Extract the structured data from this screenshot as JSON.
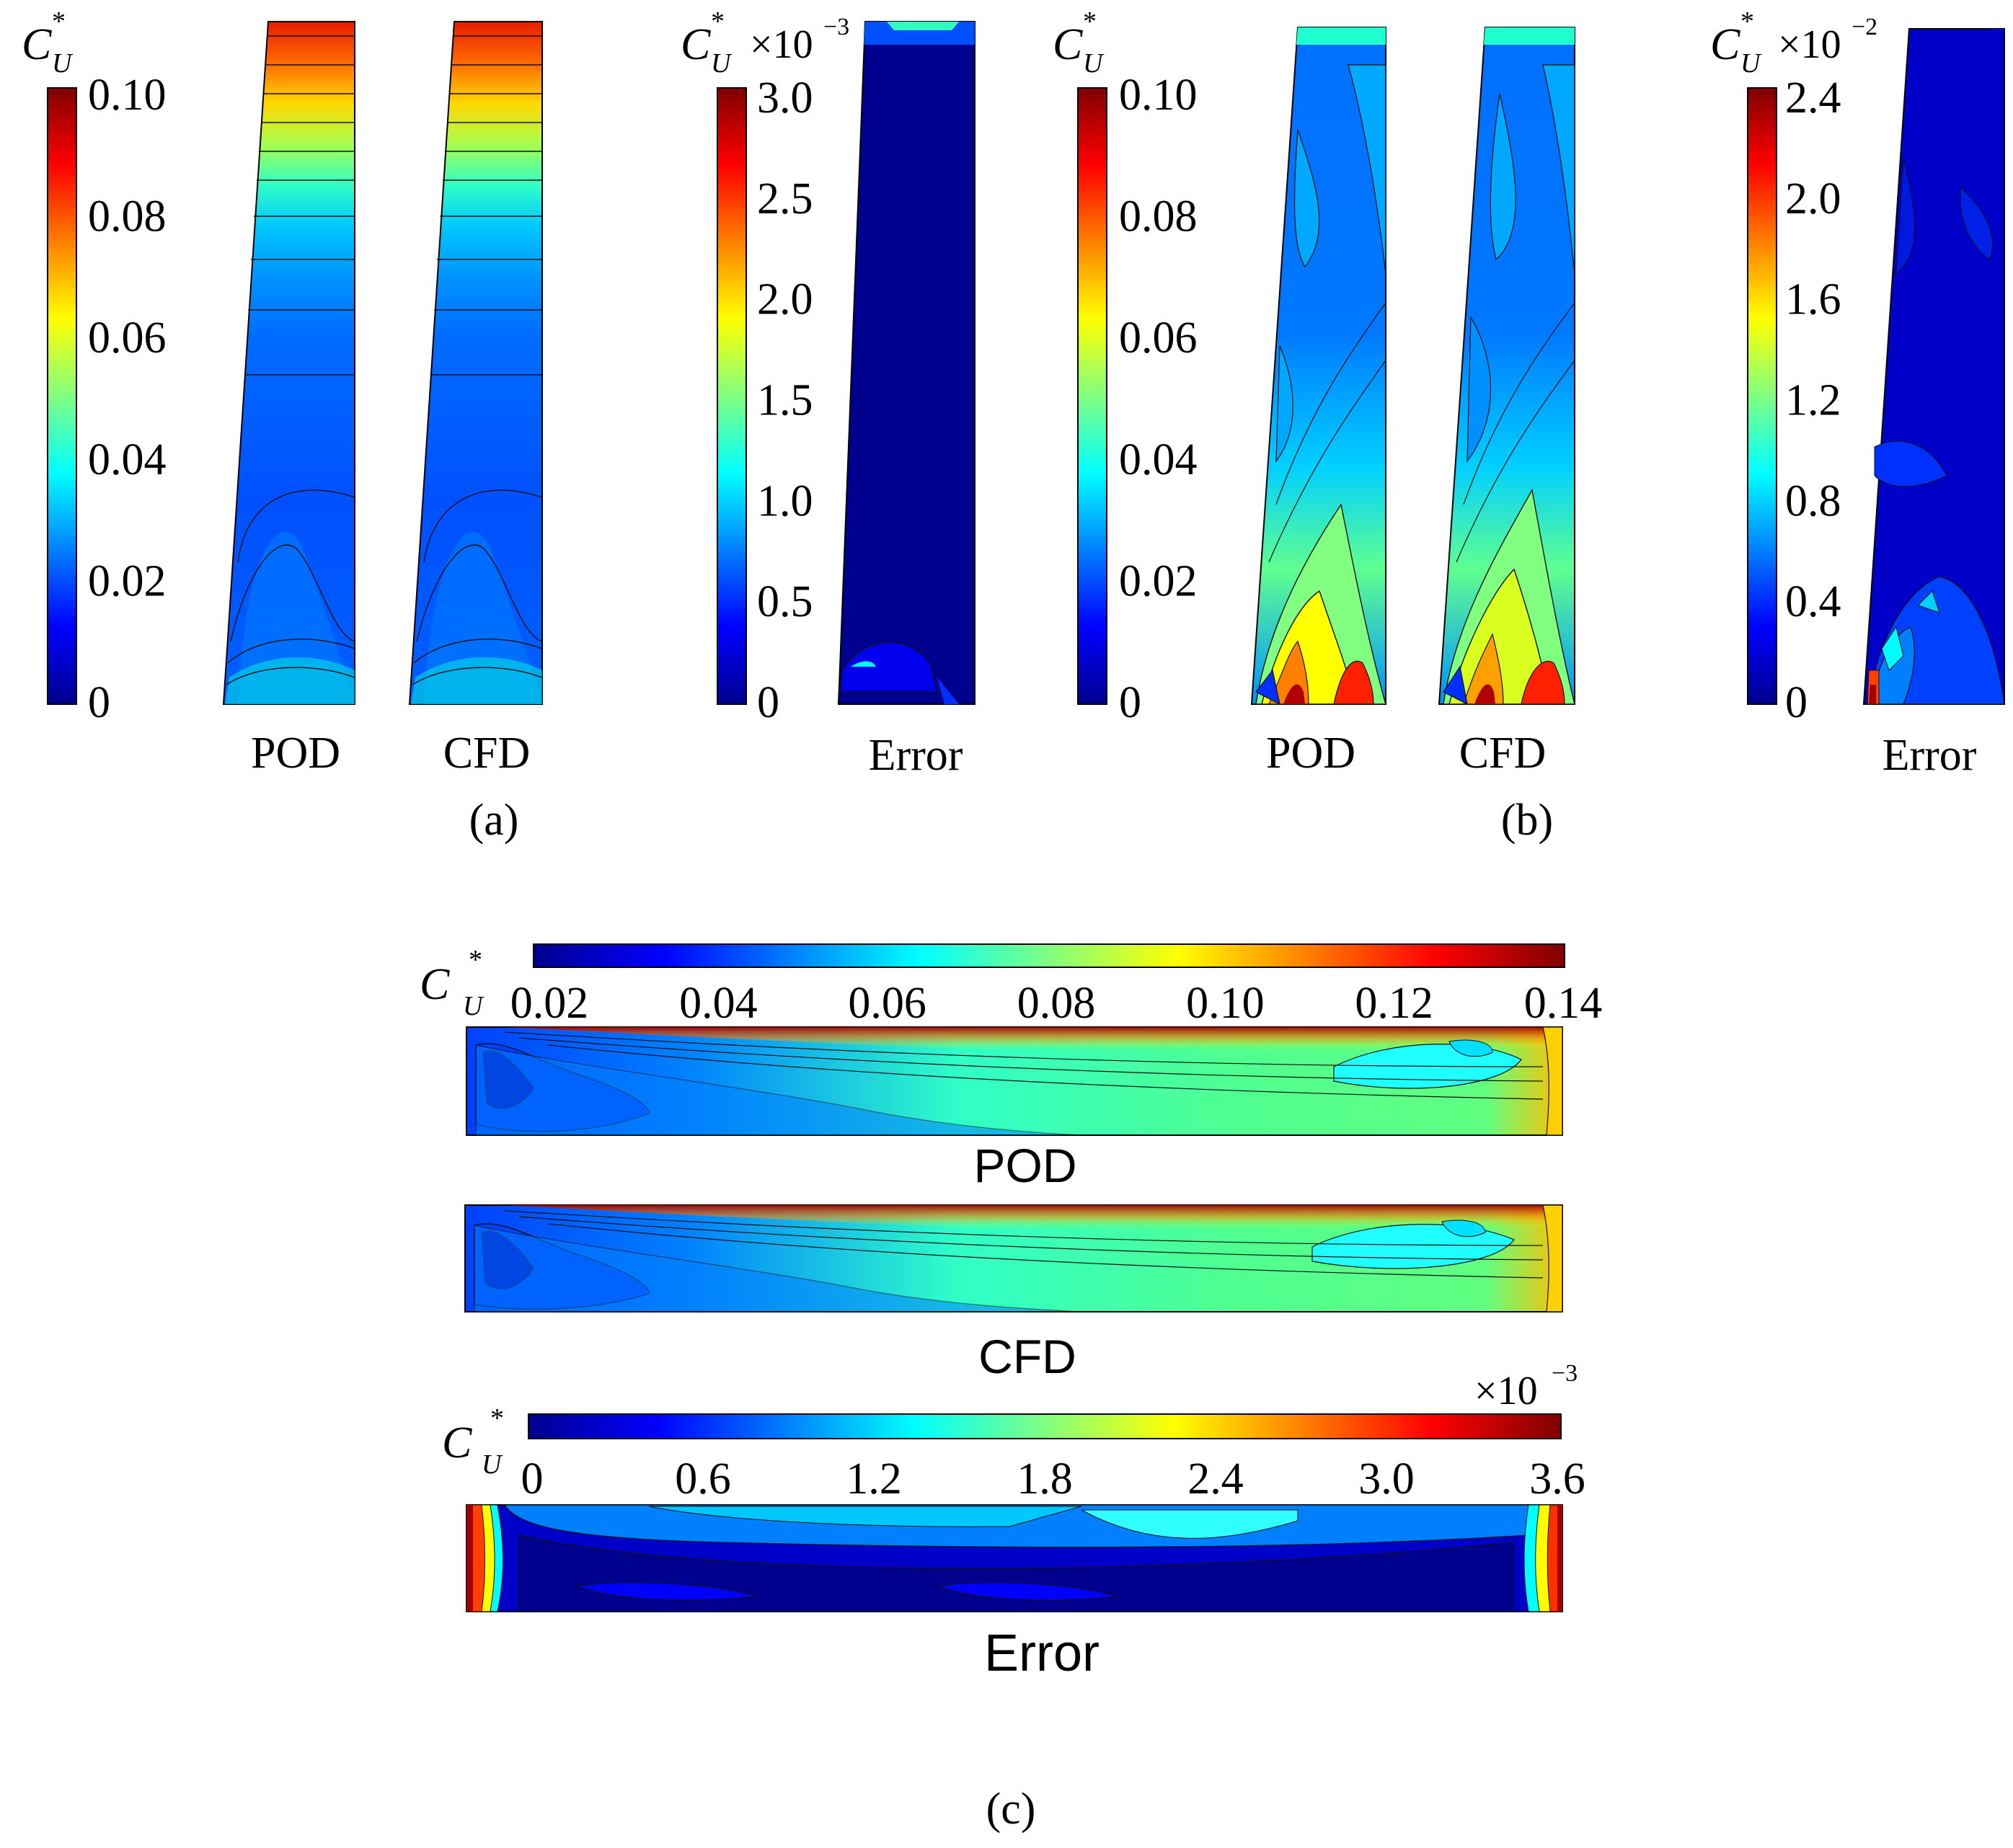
{
  "symbol": {
    "base": "C",
    "sub": "U",
    "sup": "*"
  },
  "colors": {
    "jet": [
      "#00008f",
      "#0000ff",
      "#0080ff",
      "#00ffff",
      "#80ff80",
      "#ffff00",
      "#ff8000",
      "#ff0000",
      "#800000"
    ],
    "contour_line": "#111111",
    "outline": "#000000"
  },
  "panels": {
    "a": {
      "label_text": "(a)",
      "label_letter": "a",
      "colorbar1": {
        "ticks": [
          "0.10",
          "0.08",
          "0.06",
          "0.04",
          "0.02",
          "0"
        ],
        "min": 0,
        "max": 0.1
      },
      "colorbar2": {
        "multiplier": "×10",
        "exponent": "−3",
        "ticks": [
          "3.0",
          "2.5",
          "2.0",
          "1.5",
          "1.0",
          "0.5",
          "0"
        ],
        "min": 0,
        "max": 3.0
      },
      "plot_labels": [
        "POD",
        "CFD",
        "Error"
      ]
    },
    "b": {
      "label_text": "(b)",
      "label_letter": "b",
      "colorbar1": {
        "ticks": [
          "0.10",
          "0.08",
          "0.06",
          "0.04",
          "0.02",
          "0"
        ],
        "min": 0,
        "max": 0.1
      },
      "colorbar2": {
        "multiplier": "×10",
        "exponent": "−2",
        "ticks": [
          "2.4",
          "2.0",
          "1.6",
          "1.2",
          "0.8",
          "0.4",
          "0"
        ],
        "min": 0,
        "max": 2.4
      },
      "plot_labels": [
        "POD",
        "CFD",
        "Error"
      ]
    },
    "c": {
      "label_text": "(c)",
      "label_letter": "c",
      "colorbar1": {
        "ticks": [
          "0.02",
          "0.04",
          "0.06",
          "0.08",
          "0.10",
          "0.12",
          "0.14"
        ],
        "min": 0.02,
        "max": 0.14
      },
      "colorbar2": {
        "multiplier": "×10",
        "exponent": "−3",
        "ticks": [
          "0",
          "0.6",
          "1.2",
          "1.8",
          "2.4",
          "3.0",
          "3.6"
        ],
        "min": 0,
        "max": 3.6
      },
      "plot_labels": [
        "POD",
        "CFD",
        "Error"
      ]
    }
  }
}
